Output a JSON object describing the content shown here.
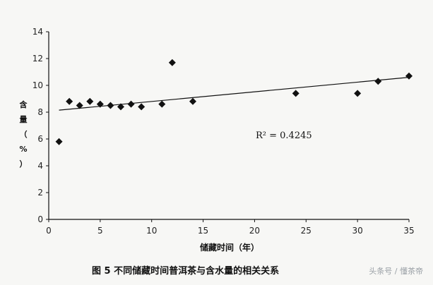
{
  "chart_data": {
    "type": "scatter",
    "xlabel": "储藏时间（年）",
    "ylabel_chars": [
      "含",
      "量",
      "（",
      "%",
      "）"
    ],
    "xlim": [
      0,
      35
    ],
    "ylim": [
      0,
      14
    ],
    "xticks": [
      0,
      5,
      10,
      15,
      20,
      25,
      30,
      35
    ],
    "yticks": [
      0,
      2,
      4,
      6,
      8,
      10,
      12,
      14
    ],
    "grid": false,
    "marker": "diamond",
    "points": [
      {
        "x": 1,
        "y": 5.8
      },
      {
        "x": 2,
        "y": 8.8
      },
      {
        "x": 3,
        "y": 8.5
      },
      {
        "x": 4,
        "y": 8.8
      },
      {
        "x": 5,
        "y": 8.6
      },
      {
        "x": 6,
        "y": 8.5
      },
      {
        "x": 7,
        "y": 8.4
      },
      {
        "x": 8,
        "y": 8.6
      },
      {
        "x": 9,
        "y": 8.4
      },
      {
        "x": 11,
        "y": 8.6
      },
      {
        "x": 12,
        "y": 11.7
      },
      {
        "x": 14,
        "y": 8.8
      },
      {
        "x": 24,
        "y": 9.4
      },
      {
        "x": 30,
        "y": 9.4
      },
      {
        "x": 32,
        "y": 10.3
      },
      {
        "x": 35,
        "y": 10.7
      }
    ],
    "trendline": {
      "x": [
        1,
        35
      ],
      "y": [
        8.15,
        10.6
      ]
    },
    "annotation": "R² = 0.4245"
  },
  "caption": "图 5  不同储藏时间普洱茶与含水量的相关关系",
  "watermark": "头条号 / 懂茶帝"
}
